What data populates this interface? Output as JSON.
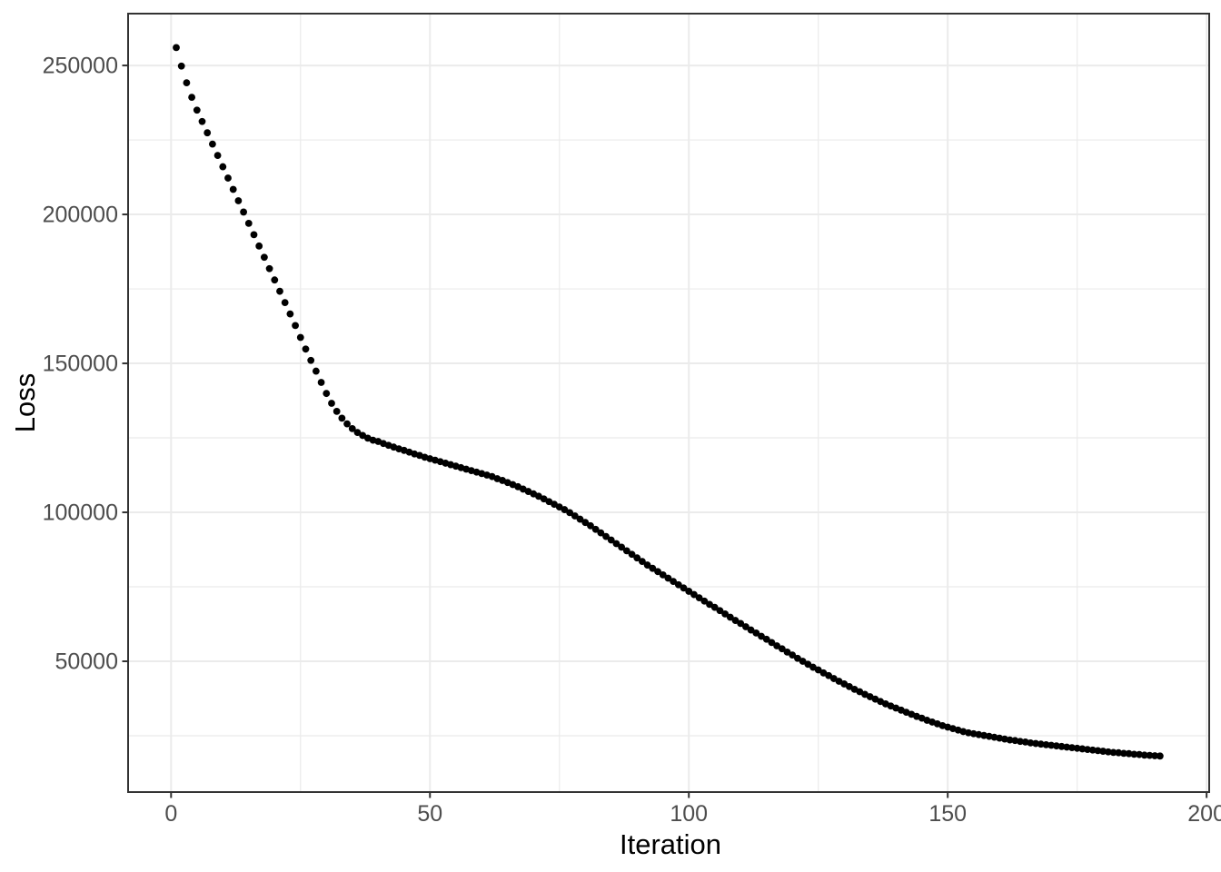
{
  "chart_data": {
    "type": "scatter",
    "title": "",
    "xlabel": "Iteration",
    "ylabel": "Loss",
    "grid": "major+minor",
    "legend": "none",
    "x_axis": {
      "ticks": [
        0,
        50,
        100,
        150,
        200
      ],
      "tick_labels": [
        "0",
        "50",
        "100",
        "150",
        "200"
      ],
      "minor_ticks": [
        25,
        75,
        125,
        175
      ],
      "lim": [
        -8.3,
        200.5
      ]
    },
    "y_axis": {
      "ticks": [
        50000,
        100000,
        150000,
        200000,
        250000
      ],
      "tick_labels": [
        "50000",
        "100000",
        "150000",
        "200000",
        "250000"
      ],
      "minor_ticks": [
        25000,
        75000,
        125000,
        175000,
        225000
      ],
      "lim": [
        6100,
        267400
      ]
    },
    "series": [
      {
        "name": "Loss",
        "marker": "point",
        "color": "#000000",
        "x_start": 1,
        "x_step": 1,
        "y": [
          256000,
          249800,
          244200,
          239300,
          235000,
          231200,
          227400,
          223600,
          219800,
          216000,
          212200,
          208400,
          204600,
          200800,
          197000,
          193200,
          189400,
          185600,
          181800,
          178000,
          174200,
          170400,
          166600,
          162700,
          158700,
          154800,
          151000,
          147400,
          143600,
          139900,
          136600,
          133900,
          131600,
          129700,
          128100,
          126800,
          125800,
          124900,
          124200,
          123800,
          123100,
          122500,
          121900,
          121300,
          120800,
          120200,
          119600,
          119100,
          118500,
          118000,
          117500,
          117000,
          116500,
          116000,
          115500,
          115000,
          114500,
          114000,
          113500,
          113000,
          112500,
          112000,
          111300,
          110700,
          110000,
          109300,
          108600,
          107800,
          107000,
          106200,
          105400,
          104500,
          103600,
          102700,
          101800,
          100900,
          99900,
          98800,
          97700,
          96600,
          95500,
          94300,
          93100,
          91900,
          90700,
          89500,
          88300,
          87100,
          85900,
          84700,
          83500,
          82300,
          81200,
          80100,
          79000,
          77900,
          76800,
          75700,
          74600,
          73500,
          72400,
          71300,
          70200,
          69100,
          68100,
          67000,
          65900,
          64800,
          63700,
          62700,
          61600,
          60500,
          59500,
          58400,
          57400,
          56300,
          55200,
          54200,
          53100,
          52100,
          51000,
          50000,
          49000,
          48000,
          47100,
          46100,
          45200,
          44200,
          43300,
          42400,
          41500,
          40600,
          39800,
          38900,
          38100,
          37300,
          36500,
          35700,
          35000,
          34300,
          33600,
          32900,
          32200,
          31500,
          30900,
          30200,
          29600,
          29000,
          28400,
          27900,
          27400,
          26900,
          26400,
          26000,
          25700,
          25400,
          25100,
          24800,
          24500,
          24200,
          23900,
          23600,
          23400,
          23100,
          22900,
          22600,
          22400,
          22200,
          22000,
          21800,
          21600,
          21400,
          21200,
          21000,
          20800,
          20600,
          20400,
          20200,
          20000,
          19800,
          19600,
          19400,
          19300,
          19100,
          19000,
          18800,
          18700,
          18500,
          18400,
          18300,
          18200
        ]
      }
    ]
  },
  "style": {
    "background": "#ffffff",
    "panel_background": "#ffffff",
    "panel_border_color": "#333333",
    "grid_major_color": "#ebebeb",
    "grid_minor_color": "#ebebeb",
    "tick_mark_color": "#333333",
    "tick_label_color": "#4d4d4d",
    "axis_title_color": "#000000",
    "point_color": "#000000"
  }
}
